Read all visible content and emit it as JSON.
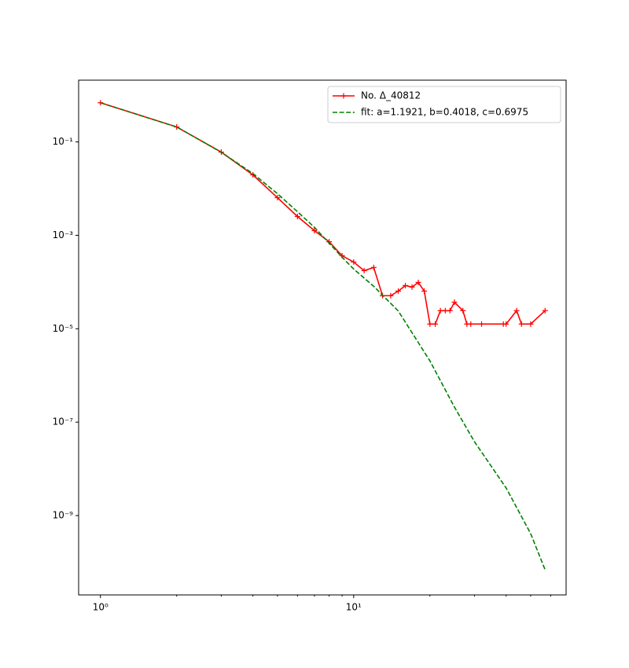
{
  "chart_data": {
    "type": "line",
    "xscale": "log",
    "yscale": "log",
    "xlim": [
      0.82,
      69
    ],
    "ylim": [
      2e-11,
      2.1
    ],
    "xticks": [
      {
        "value": 1,
        "label": "10⁰"
      },
      {
        "value": 10,
        "label": "10¹"
      }
    ],
    "xticks_minor": [
      2,
      3,
      4,
      5,
      6,
      7,
      8,
      9,
      20,
      30,
      40,
      50,
      60
    ],
    "yticks": [
      {
        "value": 0.1,
        "label": "10⁻¹"
      },
      {
        "value": 0.001,
        "label": "10⁻³"
      },
      {
        "value": 1e-05,
        "label": "10⁻⁵"
      },
      {
        "value": 1e-07,
        "label": "10⁻⁷"
      },
      {
        "value": 1e-09,
        "label": "10⁻⁹"
      }
    ],
    "legend": "upper right",
    "series": [
      {
        "name": "No. Δ_40812",
        "color": "#ff0000",
        "marker": "+",
        "linestyle": "solid",
        "x": [
          1,
          2,
          3,
          4,
          5,
          6,
          7,
          8,
          9,
          10,
          11,
          12,
          13,
          14,
          15,
          16,
          17,
          18,
          19,
          20,
          21,
          22,
          23,
          24,
          25,
          27,
          28,
          29,
          32,
          39,
          40,
          44,
          46,
          50,
          57
        ],
        "values": [
          0.69,
          0.209,
          0.0605,
          0.0197,
          0.0064,
          0.00253,
          0.00126,
          0.00073,
          0.000366,
          0.000268,
          0.000175,
          0.000205,
          5.1e-05,
          5.1e-05,
          6.4e-05,
          8.4e-05,
          7.8e-05,
          9.8e-05,
          6.4e-05,
          1.26e-05,
          1.26e-05,
          2.44e-05,
          2.44e-05,
          2.44e-05,
          3.7e-05,
          2.44e-05,
          1.26e-05,
          1.26e-05,
          1.26e-05,
          1.26e-05,
          1.26e-05,
          2.44e-05,
          1.26e-05,
          1.26e-05,
          2.44e-05
        ]
      },
      {
        "name": "fit: a=1.1921, b=0.4018, c=0.6975",
        "color": "#008000",
        "marker": "none",
        "linestyle": "dashed",
        "x": [
          1,
          2,
          3,
          4,
          5,
          6,
          7,
          8,
          9,
          10,
          12,
          15,
          20,
          25,
          30,
          40,
          50,
          57
        ],
        "values": [
          0.69,
          0.209,
          0.06,
          0.021,
          0.0078,
          0.0032,
          0.00148,
          0.00068,
          0.00034,
          0.00019,
          8.1e-05,
          2.4e-05,
          2.05e-06,
          2.1e-07,
          3.8e-08,
          3.9e-09,
          4.1e-10,
          6.9e-11
        ]
      }
    ]
  }
}
